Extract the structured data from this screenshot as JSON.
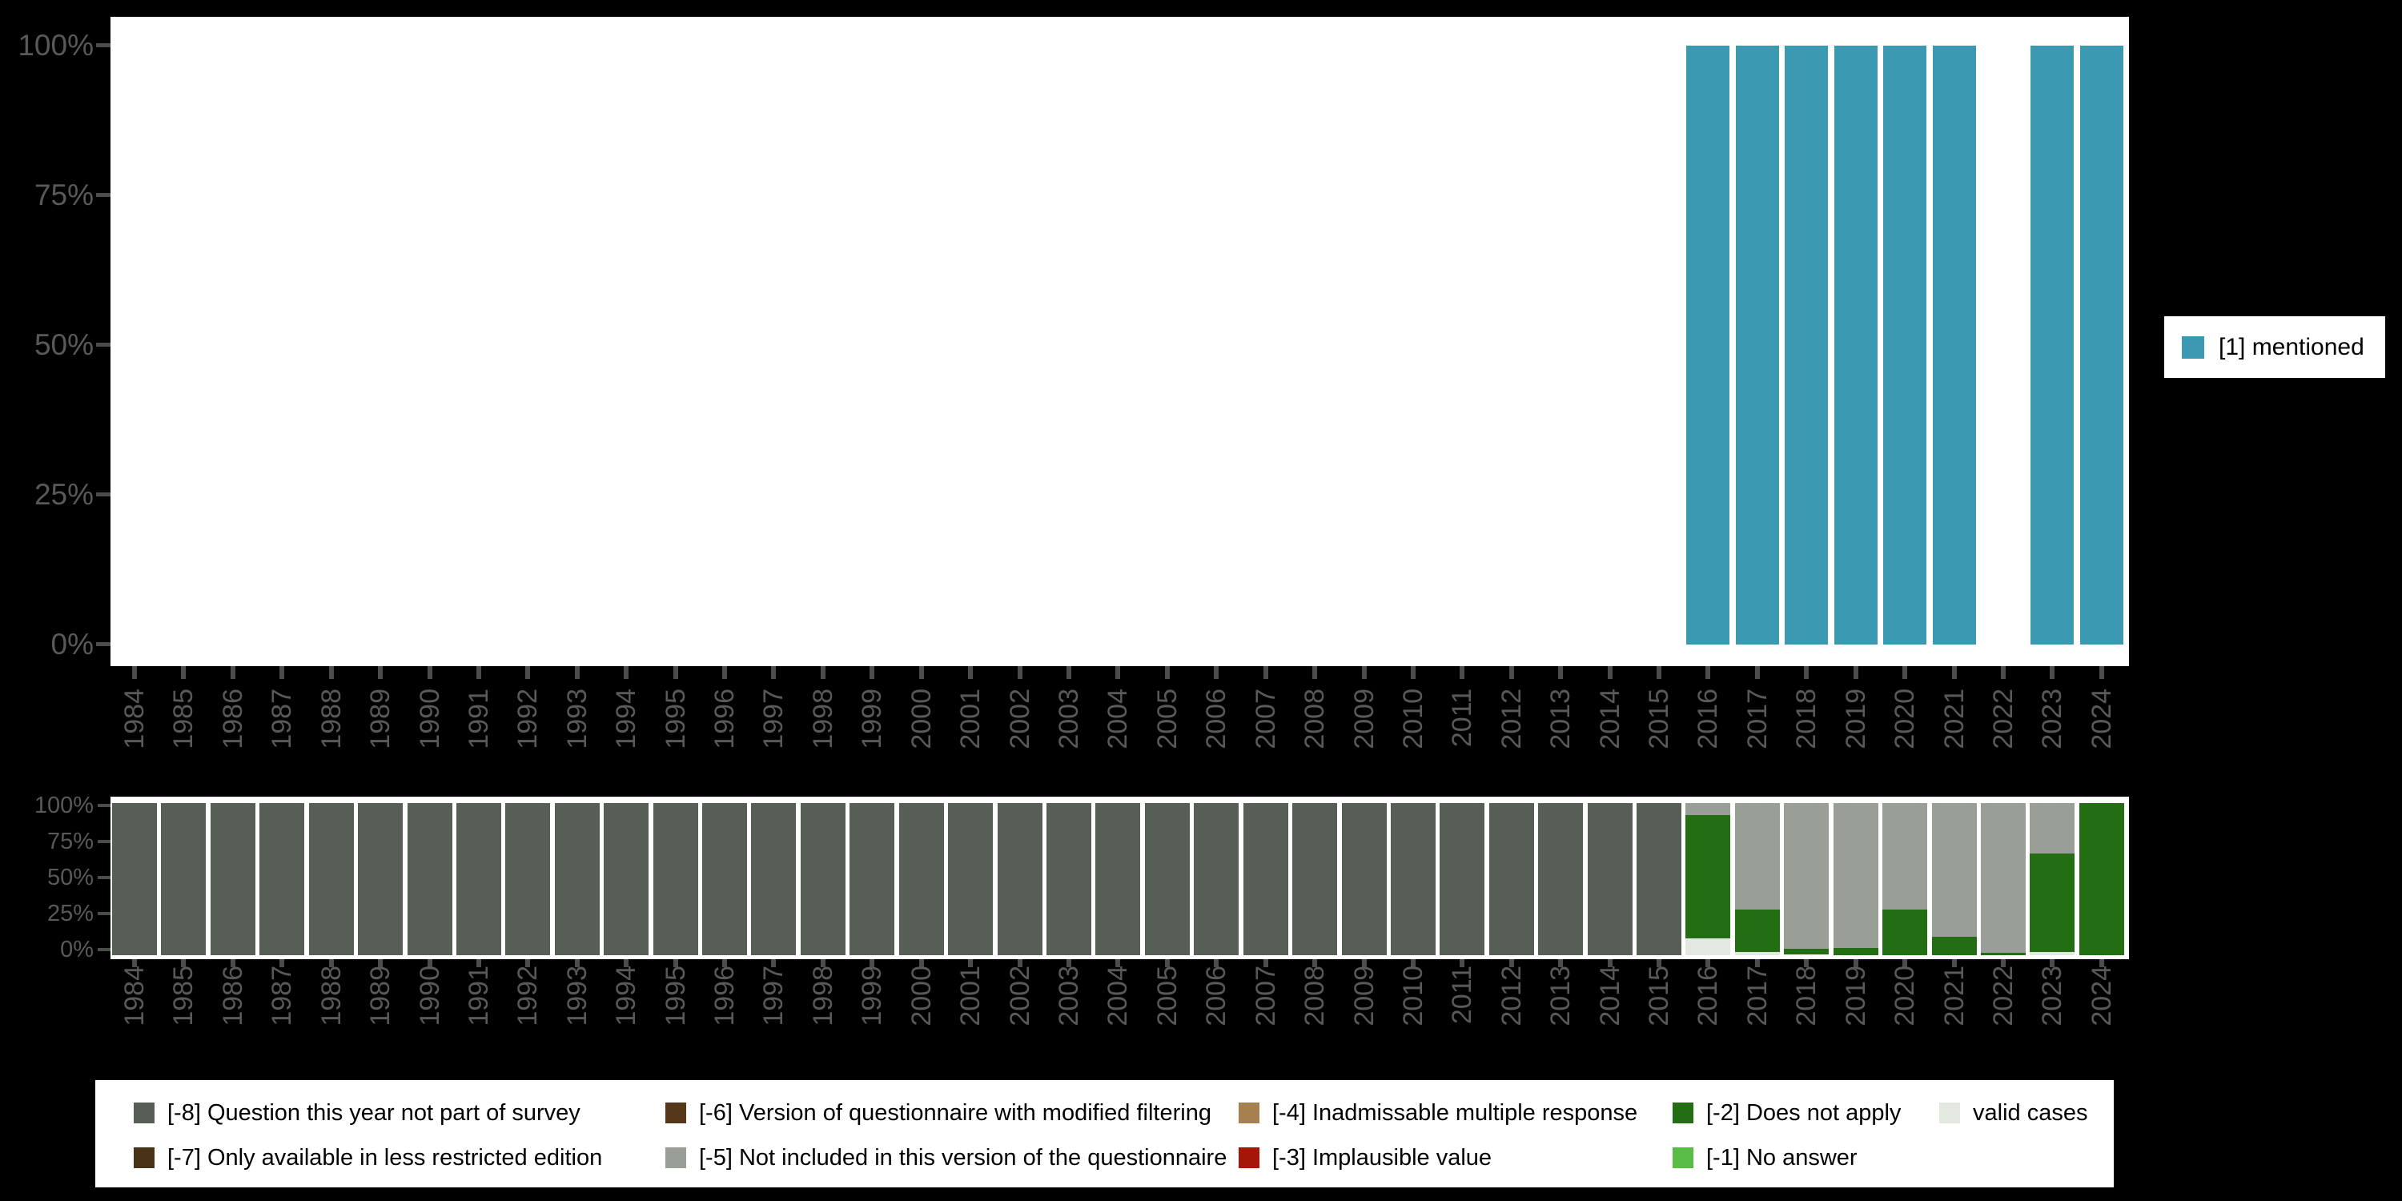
{
  "figure": {
    "background": "#000000",
    "plot_background": "#ffffff",
    "axis_text_color": "#595959",
    "tick_color": "#4c4c4c"
  },
  "top_legend": {
    "label": "[1] mentioned",
    "color": "#3b9ab1",
    "position": "right of top chart"
  },
  "chart_data": [
    {
      "type": "bar",
      "title": "",
      "xlabel": "",
      "ylabel": "",
      "ylim": [
        0,
        100
      ],
      "yticks": [
        "100%",
        "75%",
        "50%",
        "25%",
        "0%"
      ],
      "grid": false,
      "legend_position": "right",
      "categories": [
        "1984",
        "1985",
        "1986",
        "1987",
        "1988",
        "1989",
        "1990",
        "1991",
        "1992",
        "1993",
        "1994",
        "1995",
        "1996",
        "1997",
        "1998",
        "1999",
        "2000",
        "2001",
        "2002",
        "2003",
        "2004",
        "2005",
        "2006",
        "2007",
        "2008",
        "2009",
        "2010",
        "2011",
        "2012",
        "2013",
        "2014",
        "2015",
        "2016",
        "2017",
        "2018",
        "2019",
        "2020",
        "2021",
        "2022",
        "2023",
        "2024"
      ],
      "series": [
        {
          "name": "[1] mentioned",
          "color": "#3b9ab1",
          "values": [
            null,
            null,
            null,
            null,
            null,
            null,
            null,
            null,
            null,
            null,
            null,
            null,
            null,
            null,
            null,
            null,
            null,
            null,
            null,
            null,
            null,
            null,
            null,
            null,
            null,
            null,
            null,
            null,
            null,
            null,
            null,
            null,
            100,
            100,
            100,
            100,
            100,
            100,
            null,
            100,
            100
          ]
        }
      ]
    },
    {
      "type": "bar",
      "subtype": "stacked",
      "title": "",
      "xlabel": "",
      "ylabel": "",
      "ylim": [
        0,
        100
      ],
      "yticks": [
        "100%",
        "75%",
        "50%",
        "25%",
        "0%"
      ],
      "grid": false,
      "legend_position": "bottom",
      "categories": [
        "1984",
        "1985",
        "1986",
        "1987",
        "1988",
        "1989",
        "1990",
        "1991",
        "1992",
        "1993",
        "1994",
        "1995",
        "1996",
        "1997",
        "1998",
        "1999",
        "2000",
        "2001",
        "2002",
        "2003",
        "2004",
        "2005",
        "2006",
        "2007",
        "2008",
        "2009",
        "2010",
        "2011",
        "2012",
        "2013",
        "2014",
        "2015",
        "2016",
        "2017",
        "2018",
        "2019",
        "2020",
        "2021",
        "2022",
        "2023",
        "2024"
      ],
      "series": [
        {
          "name": "[-8] Question this year not part of survey",
          "color": "#565e55",
          "values": [
            100,
            100,
            100,
            100,
            100,
            100,
            100,
            100,
            100,
            100,
            100,
            100,
            100,
            100,
            100,
            100,
            100,
            100,
            100,
            100,
            100,
            100,
            100,
            100,
            100,
            100,
            100,
            100,
            100,
            100,
            100,
            100,
            0,
            0,
            0,
            0,
            0,
            0,
            0,
            0,
            0
          ]
        },
        {
          "name": "[-5] Not included in this version of the questionnaire",
          "color": "#999f96",
          "values": [
            0,
            0,
            0,
            0,
            0,
            0,
            0,
            0,
            0,
            0,
            0,
            0,
            0,
            0,
            0,
            0,
            0,
            0,
            0,
            0,
            0,
            0,
            0,
            0,
            0,
            0,
            0,
            0,
            0,
            0,
            0,
            0,
            8,
            70,
            96,
            95.5,
            70,
            88,
            98.5,
            33,
            0
          ]
        },
        {
          "name": "[-2] Does not apply",
          "color": "#236d12",
          "values": [
            0,
            0,
            0,
            0,
            0,
            0,
            0,
            0,
            0,
            0,
            0,
            0,
            0,
            0,
            0,
            0,
            0,
            0,
            0,
            0,
            0,
            0,
            0,
            0,
            0,
            0,
            0,
            0,
            0,
            0,
            0,
            0,
            81,
            28,
            3.5,
            4.5,
            30,
            12,
            1.5,
            65,
            100
          ]
        },
        {
          "name": "valid cases",
          "color": "#e3e8e1",
          "values": [
            0,
            0,
            0,
            0,
            0,
            0,
            0,
            0,
            0,
            0,
            0,
            0,
            0,
            0,
            0,
            0,
            0,
            0,
            0,
            0,
            0,
            0,
            0,
            0,
            0,
            0,
            0,
            0,
            0,
            0,
            0,
            0,
            11,
            2,
            0.5,
            0,
            0,
            0,
            0,
            2,
            0
          ]
        }
      ]
    }
  ],
  "bottom_legend": {
    "items": [
      {
        "label": "[-8] Question this year not part of survey",
        "color": "#565e55"
      },
      {
        "label": "[-7] Only available in less restricted edition",
        "color": "#4a3216"
      },
      {
        "label": "[-6] Version of questionnaire with modified filtering",
        "color": "#553719"
      },
      {
        "label": "[-5] Not included in this version of the questionnaire",
        "color": "#999f96"
      },
      {
        "label": "[-4] Inadmissable multiple response",
        "color": "#a6814f"
      },
      {
        "label": "[-3] Implausible value",
        "color": "#a51508"
      },
      {
        "label": "[-2] Does not apply",
        "color": "#236d12"
      },
      {
        "label": "[-1] No answer",
        "color": "#57bd45"
      },
      {
        "label": "valid cases",
        "color": "#e3e8e1"
      }
    ]
  }
}
